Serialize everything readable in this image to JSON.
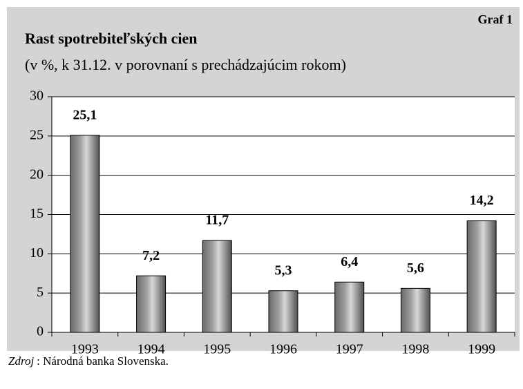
{
  "chart_data": {
    "type": "bar",
    "label": "Graf 1",
    "title": "Rast spotrebiteľských cien",
    "subtitle": "(v %, k 31.12. v porovnaní s prechádzajúcim rokom)",
    "categories": [
      "1993",
      "1994",
      "1995",
      "1996",
      "1997",
      "1998",
      "1999"
    ],
    "values": [
      25.1,
      7.2,
      11.7,
      5.3,
      6.4,
      5.6,
      14.2
    ],
    "value_labels": [
      "25,1",
      "7,2",
      "11,7",
      "5,3",
      "6,4",
      "5,6",
      "14,2"
    ],
    "color": "#a0a0a0",
    "ylim": [
      0,
      30
    ],
    "yticks": [
      0,
      5,
      10,
      15,
      20,
      25,
      30
    ],
    "grid": true,
    "source": {
      "label": "Zdroj",
      "text": ": Národná banka Slovenska."
    }
  }
}
